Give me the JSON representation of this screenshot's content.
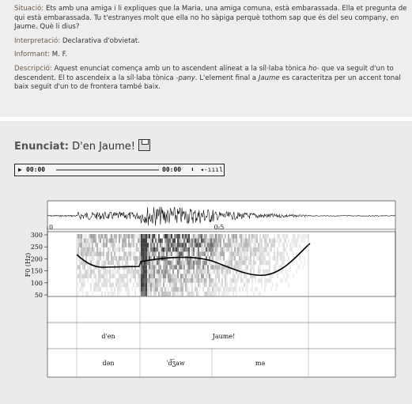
{
  "context": {
    "items": [
      {
        "label": "Situació:",
        "text": [
          "Ets amb una amiga i li expliques que la Maria, una amiga comuna, està embarassada. Ella et pregunta de qui està embarassada. Tu t'estranyes molt que ella no ho sàpiga perquè tothom sap que és del seu company, en Jaume. Què li dius?"
        ]
      },
      {
        "label": "Interpretació:",
        "text": [
          "Declarativa d'obvietat."
        ]
      },
      {
        "label": "Informant:",
        "text": [
          "M. F."
        ]
      },
      {
        "label": "Descripció:",
        "text": [
          "Aquest enunciat comença amb un to ascendent alineat a la síl·laba tònica ",
          "ho-",
          " que va seguit d'un to descendent. El to ascendeix a la síl·laba tònica ",
          "-pany",
          ". L'element final a ",
          "Jaume",
          " es caracteritza per un accent tonal baix seguit d'un to de frontera també baix."
        ]
      }
    ]
  },
  "utterance": {
    "label": "Enunciat:",
    "text": "D'en Jaume!"
  },
  "player": {
    "elapsed": "00:00",
    "total": "00:00"
  },
  "figure": {
    "xlim": [
      0,
      1.014
    ],
    "xticks": [
      0,
      0.5
    ],
    "ylim": [
      50,
      300
    ],
    "yticks": [
      300,
      250,
      200,
      150,
      100,
      50
    ],
    "y_label": "F0 (Hz)",
    "tiers": [
      [
        "d'en",
        "Jaume!"
      ],
      [
        "dən",
        "ˈd͡ʒaw",
        "mə"
      ]
    ]
  }
}
